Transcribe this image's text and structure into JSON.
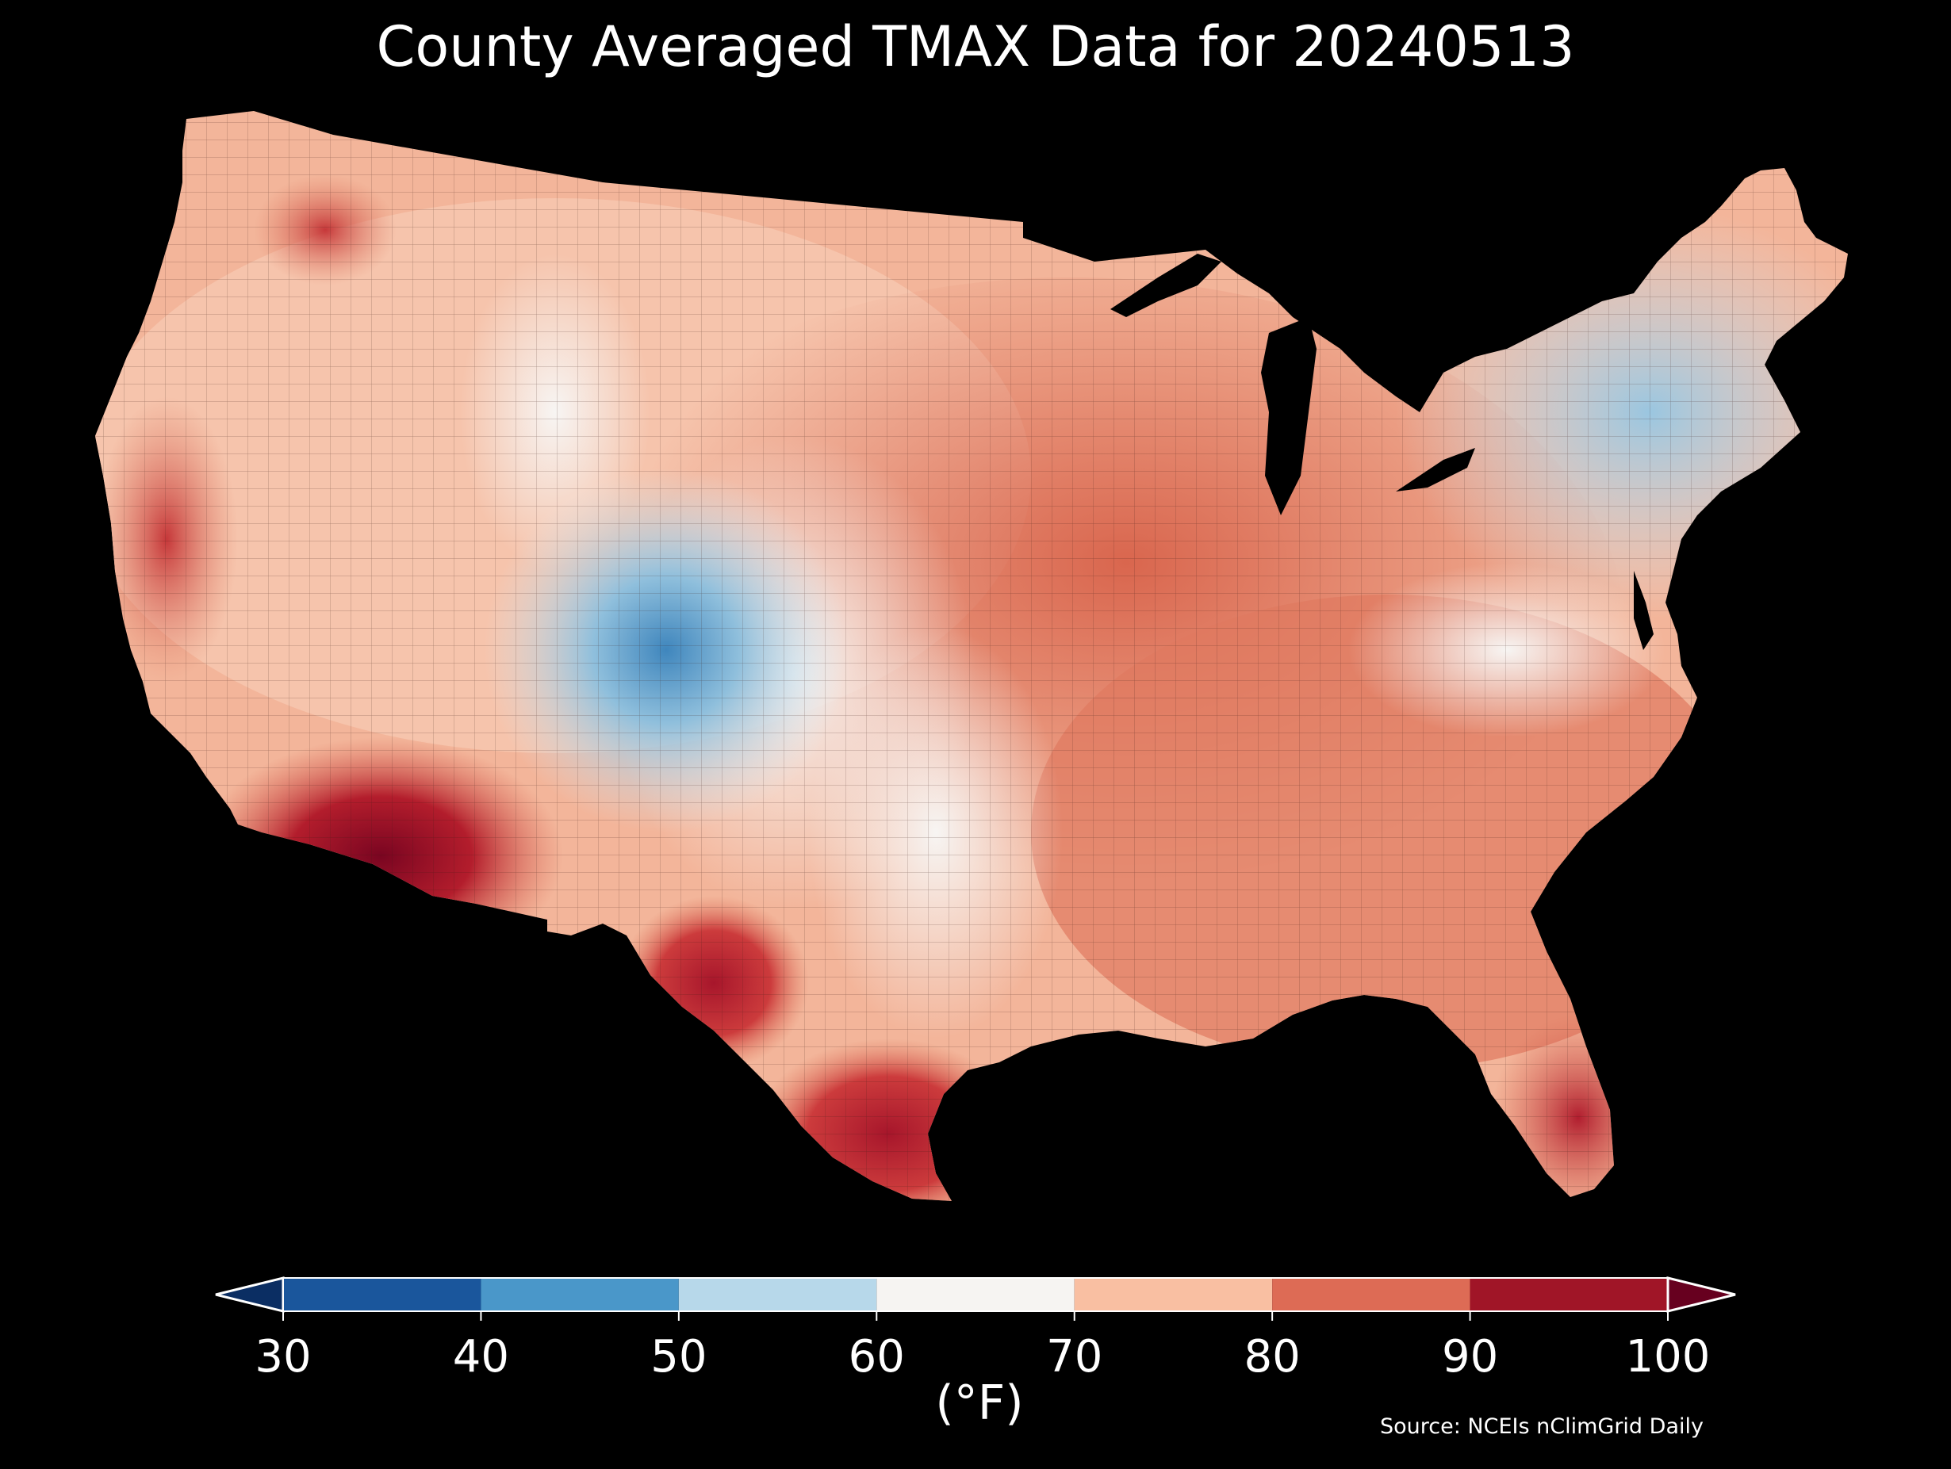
{
  "title": "County Averaged TMAX Data for 20240513",
  "map": {
    "region": "Contiguous United States",
    "unit": "°F"
  },
  "legend": {
    "ticks": [
      "30",
      "40",
      "50",
      "60",
      "70",
      "80",
      "90",
      "100"
    ],
    "bins": [
      {
        "min": 30,
        "max": 40,
        "color": "#1a569c"
      },
      {
        "min": 40,
        "max": 50,
        "color": "#4a97c9"
      },
      {
        "min": 50,
        "max": 60,
        "color": "#b7d8ea"
      },
      {
        "min": 60,
        "max": 70,
        "color": "#f6f4f2"
      },
      {
        "min": 70,
        "max": 80,
        "color": "#f9bfa2"
      },
      {
        "min": 80,
        "max": 90,
        "color": "#dd6b55"
      },
      {
        "min": 90,
        "max": 100,
        "color": "#a01527"
      }
    ],
    "under_color": "#0b2e63",
    "over_color": "#67001f",
    "label": "(°F)"
  },
  "source": "Source: NCEIs nClimGrid Daily"
}
